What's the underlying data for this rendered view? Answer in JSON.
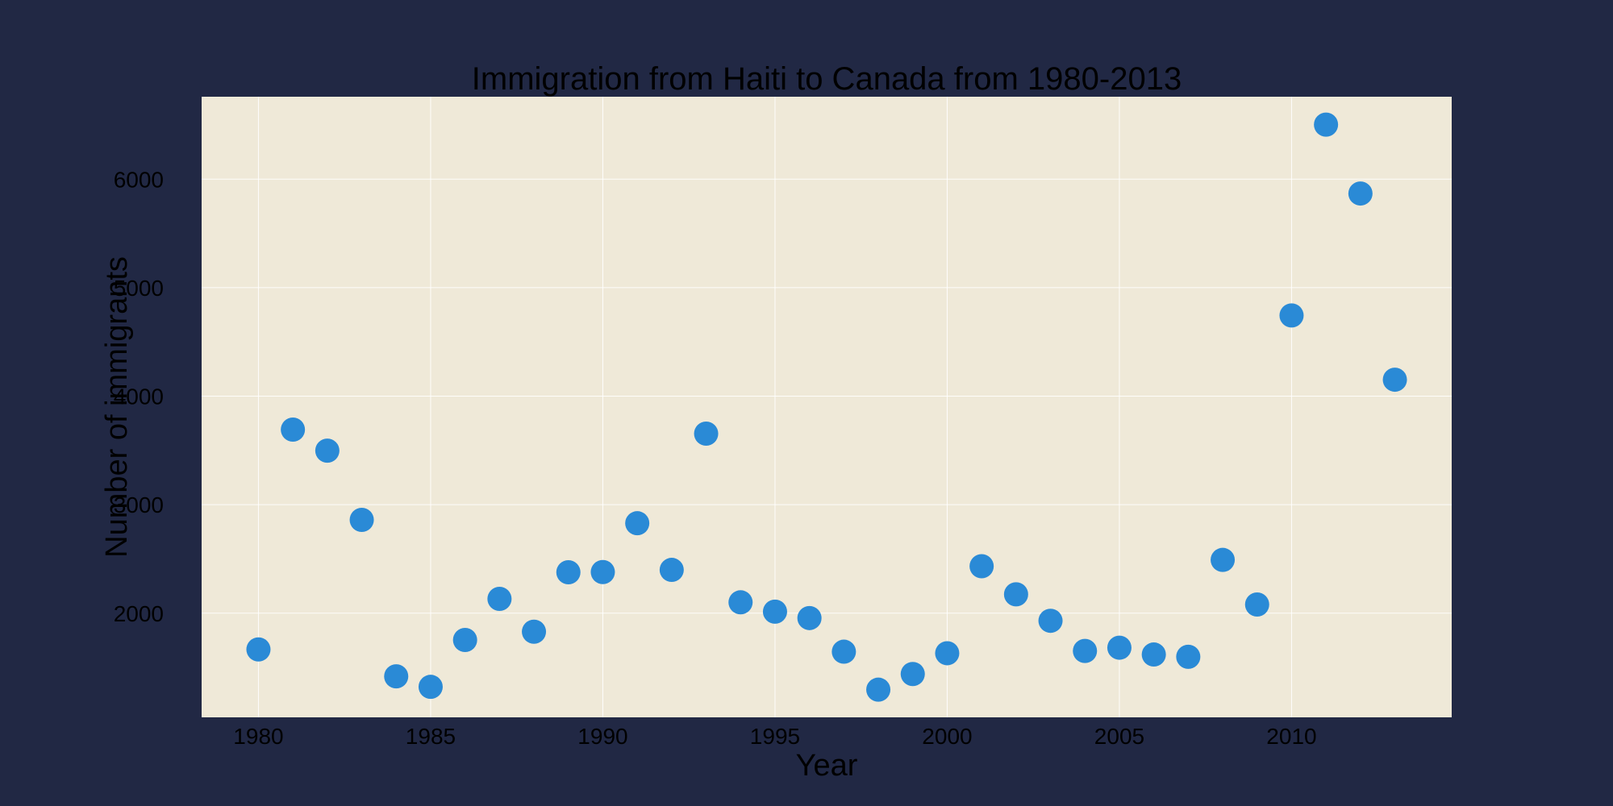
{
  "figure": {
    "background": "#212844",
    "plot_background": "#efe9d8",
    "grid_color": "#ffffff",
    "marker_color": "#2a8ad6",
    "text_color": "#000000"
  },
  "chart_data": {
    "type": "scatter",
    "title": "Immigration from Haiti to Canada from 1980-2013",
    "xlabel": "Year",
    "ylabel": "Number of immigrants",
    "xlim": [
      1978.35,
      2014.65
    ],
    "ylim": [
      1040,
      6760
    ],
    "xticks": [
      1980,
      1985,
      1990,
      1995,
      2000,
      2005,
      2010
    ],
    "yticks": [
      2000,
      3000,
      4000,
      5000,
      6000
    ],
    "grid": true,
    "legend": "none",
    "x": [
      1980,
      1981,
      1982,
      1983,
      1984,
      1985,
      1986,
      1987,
      1988,
      1989,
      1990,
      1991,
      1992,
      1993,
      1994,
      1995,
      1996,
      1997,
      1998,
      1999,
      2000,
      2001,
      2002,
      2003,
      2004,
      2005,
      2006,
      2007,
      2008,
      2009,
      2010,
      2011,
      2012,
      2013
    ],
    "y": [
      1666,
      3692,
      3498,
      2860,
      1418,
      1321,
      1753,
      2132,
      1829,
      2377,
      2379,
      2829,
      2399,
      3655,
      2100,
      2014,
      1955,
      1645,
      1295,
      1439,
      1631,
      2433,
      2174,
      1930,
      1652,
      1682,
      1619,
      1598,
      2491,
      2080,
      4744,
      6503,
      5868,
      4152
    ]
  }
}
